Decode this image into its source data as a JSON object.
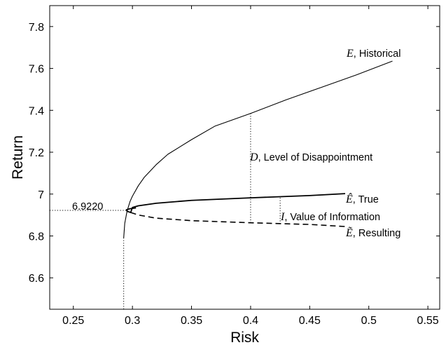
{
  "chart_data": {
    "type": "line",
    "title": "",
    "xlabel": "Risk",
    "ylabel": "Return",
    "xlim": [
      0.23,
      0.56
    ],
    "ylim": [
      6.45,
      7.9
    ],
    "x_ticks": [
      0.25,
      0.3,
      0.35,
      0.4,
      0.45,
      0.5,
      0.55
    ],
    "x_tick_labels": [
      "0.25",
      "0.3",
      "0.35",
      "0.4",
      "0.45",
      "0.5",
      "0.55"
    ],
    "y_ticks": [
      6.6,
      6.8,
      7.0,
      7.2,
      7.4,
      7.6,
      7.8
    ],
    "y_tick_labels": [
      "6.6",
      "6.8",
      "7",
      "7.2",
      "7.4",
      "7.6",
      "7.8"
    ],
    "grid": false,
    "legend": "none",
    "series": [
      {
        "label_symbol": "E",
        "label_text": ", Historical",
        "line_style": "solid-thin",
        "color": "#000000",
        "points": [
          [
            0.2926,
            6.79
          ],
          [
            0.2935,
            6.86
          ],
          [
            0.2955,
            6.92
          ],
          [
            0.298,
            6.965
          ],
          [
            0.3,
            6.99
          ],
          [
            0.305,
            7.04
          ],
          [
            0.31,
            7.08
          ],
          [
            0.32,
            7.14
          ],
          [
            0.33,
            7.19
          ],
          [
            0.34,
            7.225
          ],
          [
            0.35,
            7.26
          ],
          [
            0.37,
            7.325
          ],
          [
            0.4,
            7.385
          ],
          [
            0.43,
            7.45
          ],
          [
            0.46,
            7.51
          ],
          [
            0.49,
            7.57
          ],
          [
            0.52,
            7.635
          ]
        ]
      },
      {
        "label_symbol": "Ê",
        "label_text": ", True",
        "line_style": "solid-thick",
        "color": "#000000",
        "points": [
          [
            0.303,
            6.934
          ],
          [
            0.298,
            6.93
          ],
          [
            0.295,
            6.925
          ],
          [
            0.2955,
            6.918
          ],
          [
            0.2985,
            6.912
          ],
          [
            0.3,
            6.936
          ],
          [
            0.305,
            6.944
          ],
          [
            0.32,
            6.956
          ],
          [
            0.35,
            6.97
          ],
          [
            0.4,
            6.982
          ],
          [
            0.45,
            6.993
          ],
          [
            0.48,
            7.002
          ]
        ]
      },
      {
        "label_symbol": "Ẽ",
        "label_text": ", Resulting",
        "line_style": "dashed",
        "color": "#000000",
        "points": [
          [
            0.2985,
            6.912
          ],
          [
            0.305,
            6.9
          ],
          [
            0.32,
            6.885
          ],
          [
            0.35,
            6.873
          ],
          [
            0.4,
            6.863
          ],
          [
            0.45,
            6.855
          ],
          [
            0.48,
            6.845
          ]
        ]
      }
    ],
    "reference_lines": [
      {
        "kind": "horizontal",
        "y": 6.922,
        "x_from": 0.23,
        "x_to": 0.2955,
        "label": "6.9220"
      },
      {
        "kind": "vertical",
        "x": 0.2926,
        "y_from": 6.45,
        "y_to": 6.79
      },
      {
        "kind": "vertical",
        "x": 0.4,
        "y_from": 6.863,
        "y_to": 7.385,
        "label_symbol": "D",
        "label_text": ", Level of Disappointment"
      },
      {
        "kind": "vertical",
        "x": 0.425,
        "y_from": 6.858,
        "y_to": 6.988,
        "label_symbol": "I",
        "label_text": ", Value of Information"
      }
    ]
  }
}
